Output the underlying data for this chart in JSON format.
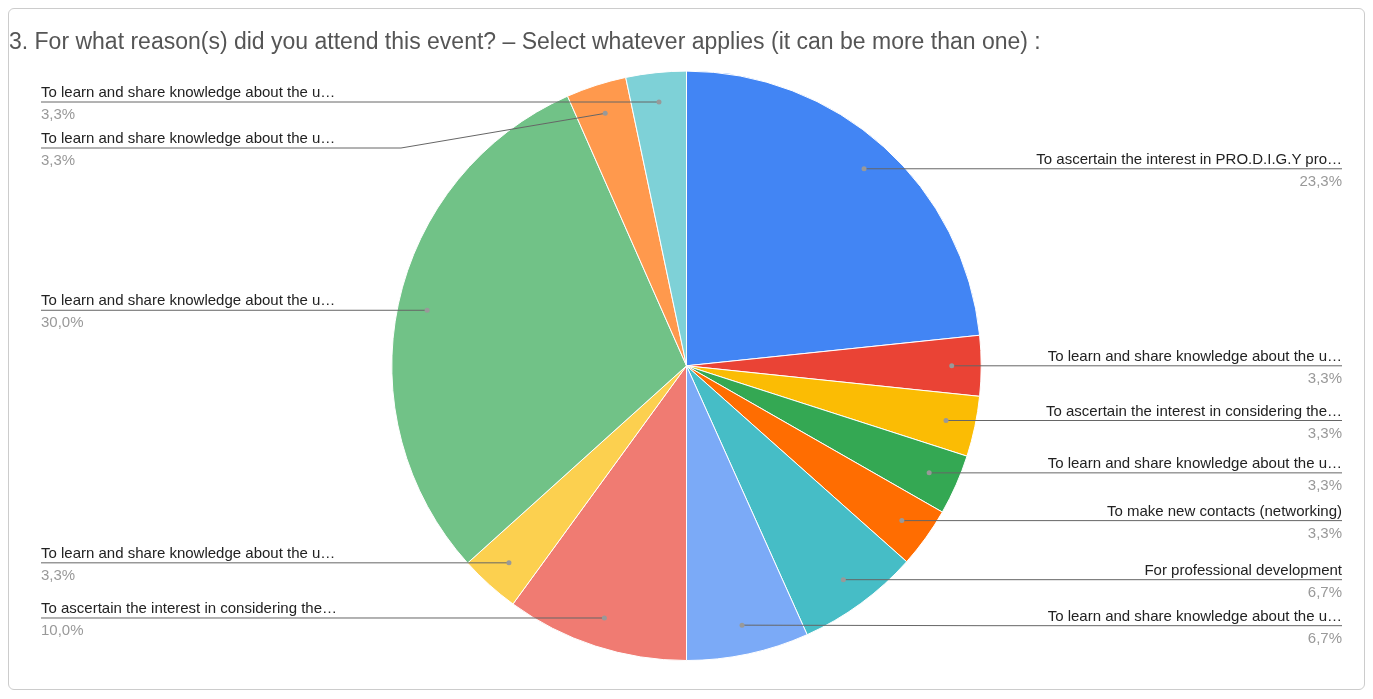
{
  "chart_data": {
    "type": "pie",
    "title": "3. For what reason(s) did you attend this event? – Select whatever applies (it can be more than one) :",
    "categories": [
      "To ascertain the interest in PRO.D.I.G.Y pro…",
      "To learn and share knowledge about the u…",
      "To ascertain the interest in considering the…",
      "To learn and share knowledge about the u…",
      "To make new contacts (networking)",
      "For professional development",
      "To learn and share knowledge about the u…",
      "To ascertain the interest in considering the…",
      "To learn and share knowledge about the u…",
      "To learn and share knowledge about the u…",
      "To learn and share knowledge about the u…",
      "To learn and share knowledge about the u…"
    ],
    "values": [
      23.3,
      3.3,
      3.3,
      3.3,
      3.3,
      6.7,
      6.7,
      10.0,
      3.3,
      30.0,
      3.3,
      3.3
    ],
    "value_labels": [
      "23,3%",
      "3,3%",
      "3,3%",
      "3,3%",
      "3,3%",
      "6,7%",
      "6,7%",
      "10,0%",
      "3,3%",
      "30,0%",
      "3,3%",
      "3,3%"
    ],
    "colors": [
      "#4285f4",
      "#ea4335",
      "#fbbc04",
      "#34a853",
      "#ff6d01",
      "#46bdc6",
      "#7baaf7",
      "#f07b72",
      "#fcd04f",
      "#71c287",
      "#ff994d",
      "#7ed1d7"
    ],
    "legend": false
  }
}
